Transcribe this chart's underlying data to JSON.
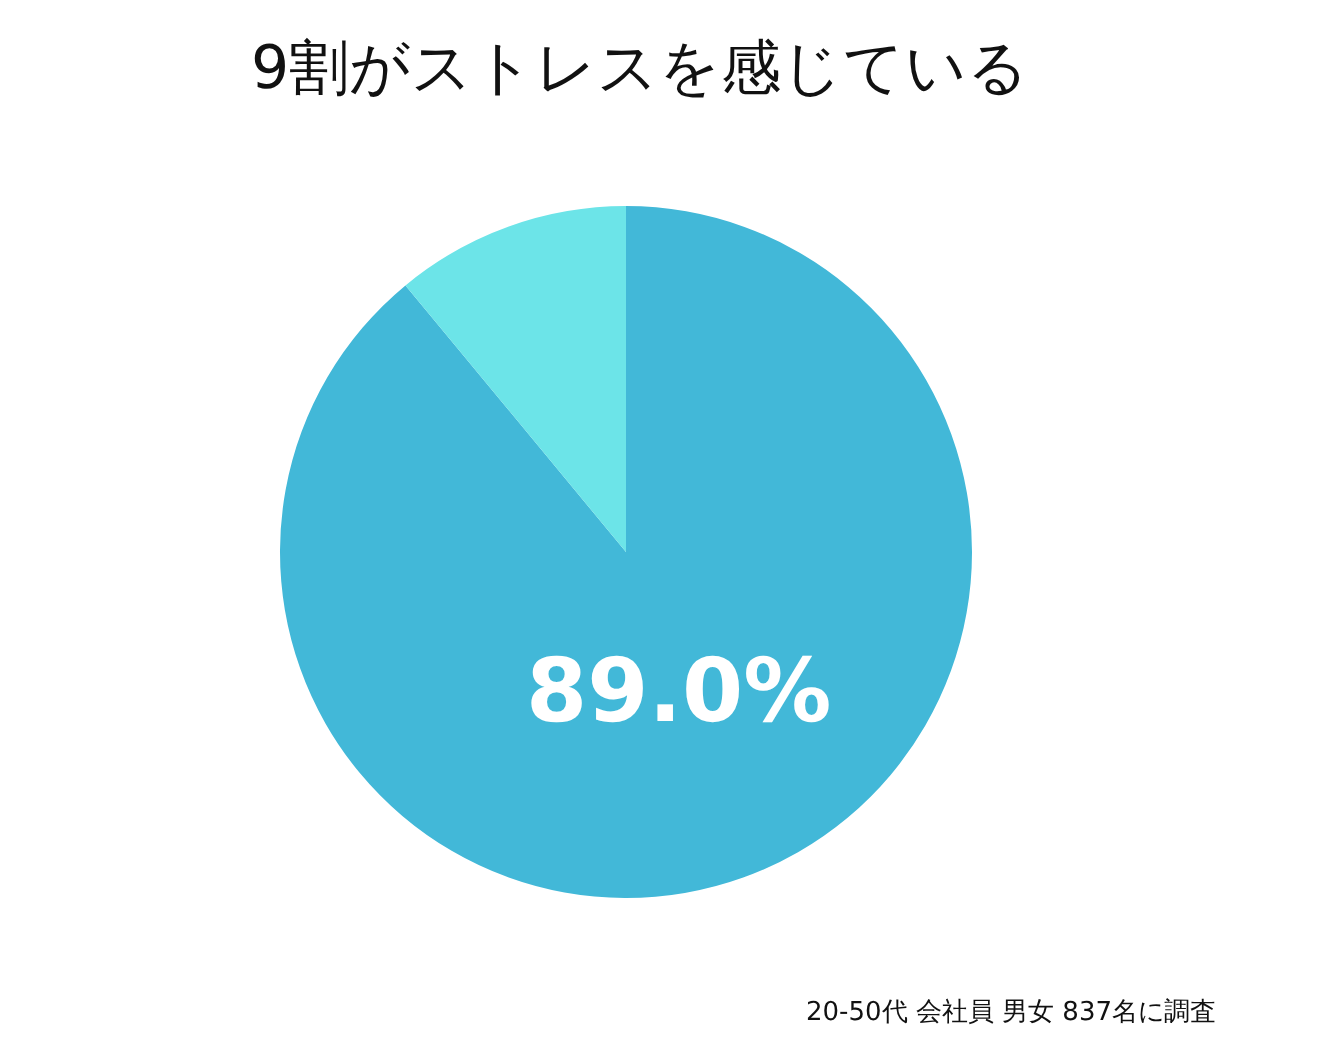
{
  "chart_data": {
    "type": "pie",
    "title": "9割がストレスを感じている",
    "categories": [
      null,
      null
    ],
    "values": [
      89,
      11
    ],
    "colors": [
      "#42b8d8",
      "#6ce4e8"
    ],
    "value_labels": [
      "89.0%",
      null
    ],
    "annotations": [
      "20-50代 会社員 男女 837名に調査"
    ]
  }
}
